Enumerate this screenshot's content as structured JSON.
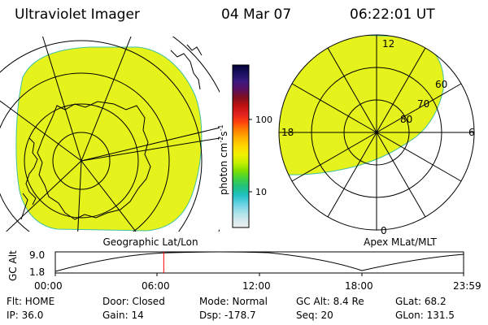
{
  "header": {
    "title": "Ultraviolet Imager",
    "date": "04 Mar 07",
    "time": "06:22:01 UT"
  },
  "colorbar": {
    "label": "photon cm",
    "exp1": "-2",
    "mid": "s",
    "exp2": "-1",
    "ticks": [
      "100",
      "10"
    ],
    "stops": [
      "#000033",
      "#1a1160",
      "#3a1a80",
      "#5a1060",
      "#801020",
      "#c01010",
      "#e02020",
      "#ff4010",
      "#ff8000",
      "#ffb000",
      "#ffd800",
      "#f0f000",
      "#c8f000",
      "#80e000",
      "#40d040",
      "#20c080",
      "#20c0c0",
      "#60d0e0",
      "#a0e0e8",
      "#d0e8ec",
      "#eeeeee"
    ]
  },
  "left_map": {
    "label": "Geographic Lat/Lon",
    "fill_color": "#e6f21b"
  },
  "right_dial": {
    "label": "Apex MLat/MLT",
    "mlt_labels": {
      "top": "12",
      "left": "18",
      "right": "6",
      "bottom": "0"
    },
    "lat_labels": [
      "60",
      "70",
      "80"
    ],
    "fill_color": "#e6f21b"
  },
  "altitude_plot": {
    "ylabel": "GC Alt",
    "ymax": "9.0",
    "ymin": "1.8",
    "xticks": [
      "00:00",
      "06:00",
      "12:00",
      "18:00",
      "23:59"
    ],
    "marker_time_hours": 6.37,
    "marker_color": "#ff0000"
  },
  "status": {
    "row1": [
      "Flt: HOME",
      "Door: Closed",
      "Mode: Normal",
      "GC Alt: 8.4 Re",
      "GLat:  68.2"
    ],
    "row2": [
      "IP: 36.0",
      "Gain: 14",
      "Dsp: -178.7",
      "Seq: 20",
      "GLon: 131.5"
    ]
  }
}
